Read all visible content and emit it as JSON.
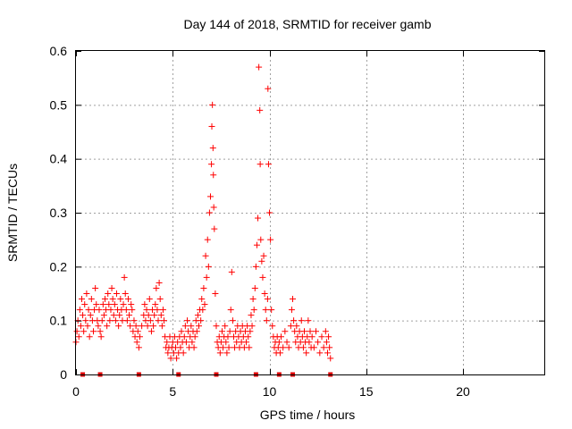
{
  "chart_data": {
    "type": "scatter",
    "title": "Day 144 of 2018, SRMTID for receiver gamb",
    "xlabel": "GPS time / hours",
    "ylabel": "SRMTID / TECUs",
    "xlim": [
      0,
      24.2
    ],
    "ylim": [
      0,
      0.6
    ],
    "xticks": [
      0,
      5,
      10,
      15,
      20
    ],
    "xtick_labels": [
      "0",
      "5",
      "10",
      "15",
      "20"
    ],
    "yticks": [
      0,
      0.1,
      0.2,
      0.3,
      0.4,
      0.5,
      0.6
    ],
    "ytick_labels": [
      "0",
      "0.1",
      "0.2",
      "0.3",
      "0.4",
      "0.5",
      "0.6"
    ],
    "grid": true,
    "marker": "plus",
    "color": "#ff0000",
    "baseline_markers_x": [
      0.35,
      1.25,
      3.25,
      5.3,
      7.25,
      9.3,
      10.5,
      11.2,
      13.15
    ],
    "points": [
      [
        0.0,
        0.06
      ],
      [
        0.05,
        0.08
      ],
      [
        0.1,
        0.1
      ],
      [
        0.15,
        0.07
      ],
      [
        0.2,
        0.12
      ],
      [
        0.25,
        0.09
      ],
      [
        0.3,
        0.14
      ],
      [
        0.35,
        0.11
      ],
      [
        0.4,
        0.08
      ],
      [
        0.45,
        0.13
      ],
      [
        0.5,
        0.1
      ],
      [
        0.55,
        0.15
      ],
      [
        0.6,
        0.09
      ],
      [
        0.65,
        0.12
      ],
      [
        0.7,
        0.07
      ],
      [
        0.75,
        0.11
      ],
      [
        0.8,
        0.14
      ],
      [
        0.85,
        0.1
      ],
      [
        0.9,
        0.08
      ],
      [
        0.95,
        0.12
      ],
      [
        1.0,
        0.16
      ],
      [
        1.05,
        0.13
      ],
      [
        1.1,
        0.1
      ],
      [
        1.15,
        0.09
      ],
      [
        1.2,
        0.12
      ],
      [
        1.25,
        0.08
      ],
      [
        1.3,
        0.07
      ],
      [
        1.35,
        0.1
      ],
      [
        1.4,
        0.13
      ],
      [
        1.45,
        0.11
      ],
      [
        1.5,
        0.14
      ],
      [
        1.55,
        0.12
      ],
      [
        1.6,
        0.09
      ],
      [
        1.65,
        0.15
      ],
      [
        1.7,
        0.13
      ],
      [
        1.75,
        0.1
      ],
      [
        1.8,
        0.12
      ],
      [
        1.85,
        0.16
      ],
      [
        1.9,
        0.14
      ],
      [
        1.95,
        0.11
      ],
      [
        2.0,
        0.13
      ],
      [
        2.05,
        0.1
      ],
      [
        2.1,
        0.15
      ],
      [
        2.15,
        0.12
      ],
      [
        2.2,
        0.09
      ],
      [
        2.25,
        0.11
      ],
      [
        2.3,
        0.14
      ],
      [
        2.35,
        0.12
      ],
      [
        2.4,
        0.1
      ],
      [
        2.45,
        0.13
      ],
      [
        2.5,
        0.18
      ],
      [
        2.55,
        0.15
      ],
      [
        2.6,
        0.12
      ],
      [
        2.65,
        0.1
      ],
      [
        2.7,
        0.14
      ],
      [
        2.75,
        0.11
      ],
      [
        2.8,
        0.09
      ],
      [
        2.85,
        0.13
      ],
      [
        2.9,
        0.12
      ],
      [
        2.95,
        0.08
      ],
      [
        3.0,
        0.1
      ],
      [
        3.05,
        0.07
      ],
      [
        3.1,
        0.09
      ],
      [
        3.15,
        0.06
      ],
      [
        3.2,
        0.08
      ],
      [
        3.25,
        0.05
      ],
      [
        3.3,
        0.07
      ],
      [
        3.4,
        0.09
      ],
      [
        3.5,
        0.11
      ],
      [
        3.55,
        0.13
      ],
      [
        3.6,
        0.1
      ],
      [
        3.65,
        0.12
      ],
      [
        3.7,
        0.09
      ],
      [
        3.75,
        0.11
      ],
      [
        3.8,
        0.14
      ],
      [
        3.85,
        0.1
      ],
      [
        3.9,
        0.08
      ],
      [
        3.95,
        0.12
      ],
      [
        4.0,
        0.09
      ],
      [
        4.05,
        0.11
      ],
      [
        4.1,
        0.13
      ],
      [
        4.15,
        0.16
      ],
      [
        4.2,
        0.12
      ],
      [
        4.25,
        0.1
      ],
      [
        4.3,
        0.17
      ],
      [
        4.35,
        0.14
      ],
      [
        4.4,
        0.11
      ],
      [
        4.45,
        0.09
      ],
      [
        4.5,
        0.12
      ],
      [
        4.55,
        0.1
      ],
      [
        4.6,
        0.07
      ],
      [
        4.65,
        0.05
      ],
      [
        4.7,
        0.06
      ],
      [
        4.75,
        0.04
      ],
      [
        4.8,
        0.05
      ],
      [
        4.85,
        0.07
      ],
      [
        4.9,
        0.03
      ],
      [
        4.95,
        0.05
      ],
      [
        5.0,
        0.06
      ],
      [
        5.05,
        0.04
      ],
      [
        5.1,
        0.07
      ],
      [
        5.15,
        0.05
      ],
      [
        5.2,
        0.03
      ],
      [
        5.25,
        0.06
      ],
      [
        5.3,
        0.04
      ],
      [
        5.35,
        0.07
      ],
      [
        5.4,
        0.05
      ],
      [
        5.45,
        0.08
      ],
      [
        5.5,
        0.06
      ],
      [
        5.55,
        0.04
      ],
      [
        5.6,
        0.07
      ],
      [
        5.65,
        0.09
      ],
      [
        5.7,
        0.06
      ],
      [
        5.75,
        0.1
      ],
      [
        5.8,
        0.08
      ],
      [
        5.85,
        0.05
      ],
      [
        5.9,
        0.07
      ],
      [
        5.95,
        0.09
      ],
      [
        6.0,
        0.06
      ],
      [
        6.05,
        0.08
      ],
      [
        6.1,
        0.05
      ],
      [
        6.15,
        0.07
      ],
      [
        6.2,
        0.1
      ],
      [
        6.25,
        0.08
      ],
      [
        6.3,
        0.11
      ],
      [
        6.35,
        0.09
      ],
      [
        6.4,
        0.12
      ],
      [
        6.45,
        0.1
      ],
      [
        6.5,
        0.14
      ],
      [
        6.55,
        0.12
      ],
      [
        6.6,
        0.16
      ],
      [
        6.65,
        0.13
      ],
      [
        6.7,
        0.22
      ],
      [
        6.75,
        0.18
      ],
      [
        6.8,
        0.25
      ],
      [
        6.85,
        0.2
      ],
      [
        6.9,
        0.3
      ],
      [
        6.95,
        0.33
      ],
      [
        7.0,
        0.39
      ],
      [
        7.02,
        0.46
      ],
      [
        7.05,
        0.5
      ],
      [
        7.08,
        0.42
      ],
      [
        7.1,
        0.37
      ],
      [
        7.12,
        0.31
      ],
      [
        7.15,
        0.27
      ],
      [
        7.2,
        0.15
      ],
      [
        7.25,
        0.09
      ],
      [
        7.3,
        0.06
      ],
      [
        7.35,
        0.05
      ],
      [
        7.4,
        0.07
      ],
      [
        7.45,
        0.04
      ],
      [
        7.5,
        0.06
      ],
      [
        7.55,
        0.08
      ],
      [
        7.6,
        0.05
      ],
      [
        7.65,
        0.07
      ],
      [
        7.7,
        0.09
      ],
      [
        7.75,
        0.06
      ],
      [
        7.8,
        0.04
      ],
      [
        7.85,
        0.07
      ],
      [
        7.9,
        0.05
      ],
      [
        7.95,
        0.08
      ],
      [
        8.0,
        0.12
      ],
      [
        8.05,
        0.19
      ],
      [
        8.1,
        0.1
      ],
      [
        8.15,
        0.07
      ],
      [
        8.2,
        0.05
      ],
      [
        8.25,
        0.08
      ],
      [
        8.3,
        0.06
      ],
      [
        8.35,
        0.09
      ],
      [
        8.4,
        0.07
      ],
      [
        8.45,
        0.05
      ],
      [
        8.5,
        0.08
      ],
      [
        8.55,
        0.06
      ],
      [
        8.6,
        0.09
      ],
      [
        8.65,
        0.07
      ],
      [
        8.7,
        0.05
      ],
      [
        8.75,
        0.08
      ],
      [
        8.8,
        0.06
      ],
      [
        8.85,
        0.09
      ],
      [
        8.9,
        0.07
      ],
      [
        8.95,
        0.05
      ],
      [
        9.0,
        0.08
      ],
      [
        9.05,
        0.11
      ],
      [
        9.1,
        0.09
      ],
      [
        9.15,
        0.14
      ],
      [
        9.2,
        0.12
      ],
      [
        9.25,
        0.16
      ],
      [
        9.3,
        0.2
      ],
      [
        9.35,
        0.24
      ],
      [
        9.4,
        0.29
      ],
      [
        9.45,
        0.57
      ],
      [
        9.5,
        0.49
      ],
      [
        9.52,
        0.39
      ],
      [
        9.55,
        0.25
      ],
      [
        9.6,
        0.21
      ],
      [
        9.65,
        0.18
      ],
      [
        9.7,
        0.22
      ],
      [
        9.75,
        0.15
      ],
      [
        9.8,
        0.12
      ],
      [
        9.85,
        0.1
      ],
      [
        9.9,
        0.14
      ],
      [
        9.92,
        0.53
      ],
      [
        9.95,
        0.39
      ],
      [
        10.0,
        0.3
      ],
      [
        10.05,
        0.25
      ],
      [
        10.1,
        0.12
      ],
      [
        10.15,
        0.09
      ],
      [
        10.2,
        0.07
      ],
      [
        10.25,
        0.05
      ],
      [
        10.3,
        0.06
      ],
      [
        10.35,
        0.04
      ],
      [
        10.4,
        0.07
      ],
      [
        10.45,
        0.05
      ],
      [
        10.5,
        0.06
      ],
      [
        10.55,
        0.04
      ],
      [
        10.6,
        0.07
      ],
      [
        10.7,
        0.05
      ],
      [
        10.8,
        0.08
      ],
      [
        10.9,
        0.06
      ],
      [
        11.0,
        0.05
      ],
      [
        11.1,
        0.09
      ],
      [
        11.15,
        0.12
      ],
      [
        11.2,
        0.14
      ],
      [
        11.25,
        0.1
      ],
      [
        11.3,
        0.08
      ],
      [
        11.35,
        0.06
      ],
      [
        11.4,
        0.09
      ],
      [
        11.45,
        0.07
      ],
      [
        11.5,
        0.05
      ],
      [
        11.55,
        0.08
      ],
      [
        11.6,
        0.06
      ],
      [
        11.65,
        0.1
      ],
      [
        11.7,
        0.07
      ],
      [
        11.75,
        0.05
      ],
      [
        11.8,
        0.08
      ],
      [
        11.85,
        0.06
      ],
      [
        11.9,
        0.04
      ],
      [
        11.95,
        0.07
      ],
      [
        12.0,
        0.1
      ],
      [
        12.05,
        0.06
      ],
      [
        12.1,
        0.08
      ],
      [
        12.15,
        0.05
      ],
      [
        12.2,
        0.07
      ],
      [
        12.3,
        0.05
      ],
      [
        12.4,
        0.08
      ],
      [
        12.5,
        0.06
      ],
      [
        12.6,
        0.04
      ],
      [
        12.7,
        0.07
      ],
      [
        12.8,
        0.05
      ],
      [
        12.9,
        0.08
      ],
      [
        12.95,
        0.06
      ],
      [
        13.0,
        0.04
      ],
      [
        13.05,
        0.07
      ],
      [
        13.1,
        0.05
      ],
      [
        13.15,
        0.03
      ]
    ]
  }
}
